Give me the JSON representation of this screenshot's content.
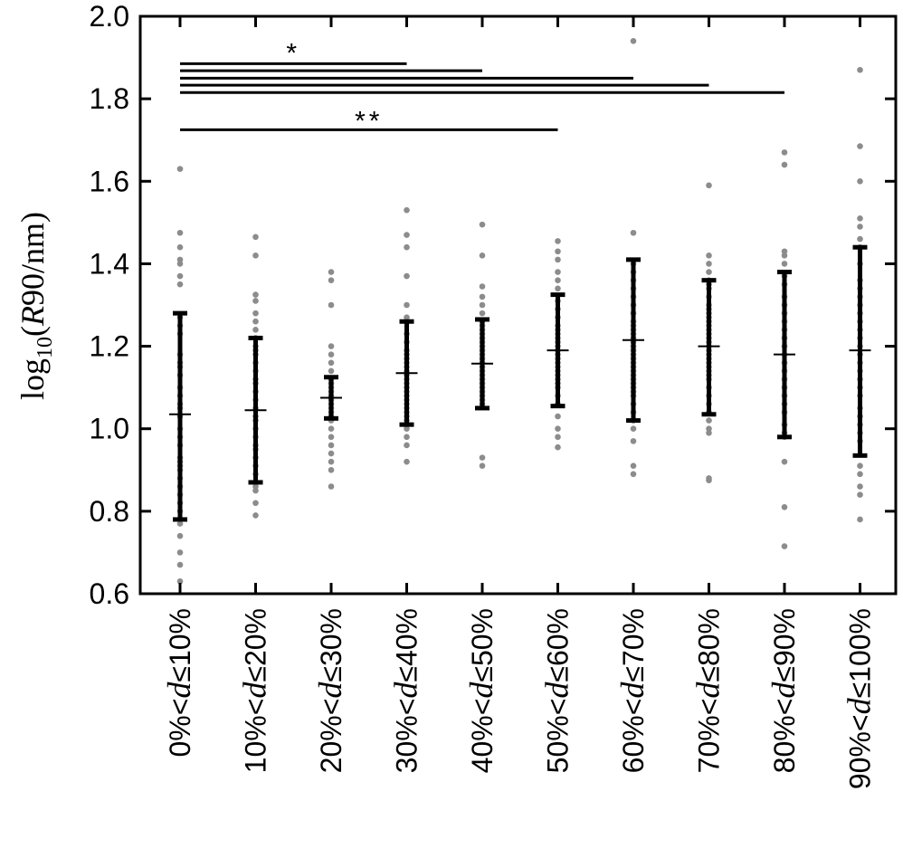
{
  "chart_data": {
    "type": "scatter",
    "title": "",
    "xlabel": "",
    "ylabel": {
      "base": "log",
      "subscript": "10",
      "open": "(",
      "var": "R",
      "rest": "90/nm)"
    },
    "ylim": [
      0.6,
      2.0
    ],
    "yticks": [
      "0.6",
      "0.8",
      "1.0",
      "1.2",
      "1.4",
      "1.6",
      "1.8",
      "2.0"
    ],
    "grid": false,
    "legend": "none",
    "categories": [
      {
        "pre": "0%<",
        "var": "d",
        "post": "≤10%"
      },
      {
        "pre": "10%<",
        "var": "d",
        "post": "≤20%"
      },
      {
        "pre": "20%<",
        "var": "d",
        "post": "≤30%"
      },
      {
        "pre": "30%<",
        "var": "d",
        "post": "≤40%"
      },
      {
        "pre": "40%<",
        "var": "d",
        "post": "≤50%"
      },
      {
        "pre": "50%<",
        "var": "d",
        "post": "≤60%"
      },
      {
        "pre": "60%<",
        "var": "d",
        "post": "≤70%"
      },
      {
        "pre": "70%<",
        "var": "d",
        "post": "≤80%"
      },
      {
        "pre": "80%<",
        "var": "d",
        "post": "≤90%"
      },
      {
        "pre": "90%<",
        "var": "d",
        "post": "≤100%"
      }
    ],
    "summary": [
      {
        "mean": 1.035,
        "low": 0.78,
        "high": 1.28
      },
      {
        "mean": 1.045,
        "low": 0.87,
        "high": 1.22
      },
      {
        "mean": 1.075,
        "low": 1.025,
        "high": 1.125
      },
      {
        "mean": 1.135,
        "low": 1.01,
        "high": 1.26
      },
      {
        "mean": 1.158,
        "low": 1.05,
        "high": 1.265
      },
      {
        "mean": 1.19,
        "low": 1.055,
        "high": 1.325
      },
      {
        "mean": 1.215,
        "low": 1.02,
        "high": 1.41
      },
      {
        "mean": 1.2,
        "low": 1.035,
        "high": 1.36
      },
      {
        "mean": 1.18,
        "low": 0.98,
        "high": 1.38
      },
      {
        "mean": 1.19,
        "low": 0.935,
        "high": 1.44
      }
    ],
    "points": [
      [
        1.63,
        1.475,
        1.44,
        1.41,
        1.4,
        1.37,
        1.35,
        1.27,
        1.25,
        1.23,
        1.18,
        1.16,
        1.15,
        1.13,
        1.1,
        1.08,
        1.06,
        1.05,
        1.03,
        1.0,
        0.98,
        0.96,
        0.93,
        0.92,
        0.91,
        0.9,
        0.88,
        0.86,
        0.84,
        0.82,
        0.8,
        0.77,
        0.74,
        0.7,
        0.67,
        0.63
      ],
      [
        1.465,
        1.42,
        1.325,
        1.31,
        1.28,
        1.26,
        1.24,
        1.22,
        1.2,
        1.19,
        1.18,
        1.16,
        1.14,
        1.12,
        1.11,
        1.09,
        1.07,
        1.05,
        1.03,
        1.02,
        1.0,
        0.98,
        0.96,
        0.95,
        0.93,
        0.91,
        0.89,
        0.87,
        0.86,
        0.85,
        0.82,
        0.79
      ],
      [
        1.38,
        1.36,
        1.3,
        1.2,
        1.18,
        1.16,
        1.14,
        1.12,
        1.11,
        1.1,
        1.09,
        1.08,
        1.07,
        1.06,
        1.05,
        1.04,
        1.03,
        1.02,
        1.0,
        0.98,
        0.96,
        0.94,
        0.92,
        0.9,
        0.86
      ],
      [
        1.53,
        1.47,
        1.44,
        1.37,
        1.3,
        1.27,
        1.23,
        1.21,
        1.19,
        1.18,
        1.17,
        1.16,
        1.15,
        1.14,
        1.13,
        1.12,
        1.11,
        1.1,
        1.09,
        1.08,
        1.07,
        1.06,
        1.05,
        1.04,
        1.03,
        1.02,
        1.01,
        1.0,
        0.98,
        0.96,
        0.92
      ],
      [
        1.495,
        1.42,
        1.345,
        1.32,
        1.3,
        1.28,
        1.26,
        1.25,
        1.24,
        1.23,
        1.22,
        1.21,
        1.2,
        1.19,
        1.18,
        1.17,
        1.16,
        1.15,
        1.14,
        1.13,
        1.12,
        1.11,
        1.1,
        1.09,
        1.08,
        1.07,
        1.06,
        0.93,
        0.91
      ],
      [
        1.455,
        1.43,
        1.41,
        1.38,
        1.36,
        1.34,
        1.31,
        1.29,
        1.27,
        1.25,
        1.24,
        1.23,
        1.22,
        1.21,
        1.2,
        1.19,
        1.18,
        1.17,
        1.16,
        1.15,
        1.14,
        1.13,
        1.12,
        1.11,
        1.1,
        1.08,
        1.06,
        1.03,
        1.0,
        0.98,
        0.955
      ],
      [
        1.94,
        1.475,
        1.4,
        1.38,
        1.36,
        1.34,
        1.32,
        1.3,
        1.28,
        1.26,
        1.25,
        1.24,
        1.23,
        1.22,
        1.21,
        1.2,
        1.19,
        1.18,
        1.17,
        1.16,
        1.15,
        1.14,
        1.13,
        1.12,
        1.11,
        1.1,
        1.09,
        1.08,
        1.06,
        1.04,
        1.02,
        1.0,
        0.97,
        0.91,
        0.89
      ],
      [
        1.59,
        1.42,
        1.4,
        1.38,
        1.36,
        1.35,
        1.34,
        1.32,
        1.3,
        1.29,
        1.28,
        1.27,
        1.26,
        1.25,
        1.24,
        1.23,
        1.22,
        1.21,
        1.2,
        1.19,
        1.18,
        1.17,
        1.16,
        1.15,
        1.14,
        1.13,
        1.12,
        1.1,
        1.08,
        1.06,
        1.04,
        1.02,
        1.0,
        0.99,
        0.88,
        0.875
      ],
      [
        1.67,
        1.64,
        1.43,
        1.42,
        1.4,
        1.37,
        1.35,
        1.32,
        1.3,
        1.28,
        1.26,
        1.24,
        1.22,
        1.2,
        1.18,
        1.16,
        1.14,
        1.12,
        1.1,
        1.08,
        1.06,
        1.04,
        1.01,
        0.99,
        0.98,
        0.92,
        0.81,
        0.715
      ],
      [
        1.87,
        1.685,
        1.6,
        1.51,
        1.49,
        1.46,
        1.44,
        1.4,
        1.36,
        1.34,
        1.32,
        1.3,
        1.28,
        1.26,
        1.24,
        1.22,
        1.2,
        1.18,
        1.16,
        1.14,
        1.12,
        1.1,
        1.08,
        1.05,
        1.03,
        1.01,
        0.99,
        0.97,
        0.91,
        0.89,
        0.86,
        0.84,
        0.78
      ]
    ],
    "significance": [
      {
        "from": 0,
        "to": 3,
        "y": 1.885,
        "label": "*",
        "label_y": 1.92
      },
      {
        "from": 0,
        "to": 4,
        "y": 1.868,
        "label": "",
        "label_y": null
      },
      {
        "from": 0,
        "to": 6,
        "y": 1.85,
        "label": "",
        "label_y": null
      },
      {
        "from": 0,
        "to": 7,
        "y": 1.833,
        "label": "",
        "label_y": null
      },
      {
        "from": 0,
        "to": 8,
        "y": 1.815,
        "label": "",
        "label_y": null
      },
      {
        "from": 0,
        "to": 5,
        "y": 1.725,
        "label": "**",
        "label_y": 1.755
      }
    ],
    "colors": {
      "points": "#8c8c8c",
      "bars": "#000000",
      "axes": "#000000"
    }
  }
}
